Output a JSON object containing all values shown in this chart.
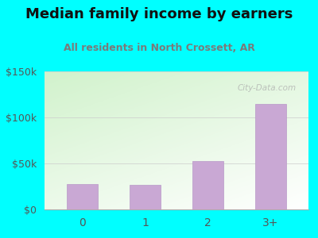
{
  "title": "Median family income by earners",
  "subtitle": "All residents in North Crossett, AR",
  "categories": [
    "0",
    "1",
    "2",
    "3+"
  ],
  "values": [
    28000,
    27000,
    53000,
    115000
  ],
  "bar_color": "#c9a8d4",
  "bar_edge_color": "#b898c8",
  "ylim": [
    0,
    150000
  ],
  "yticks": [
    0,
    50000,
    100000,
    150000
  ],
  "ytick_labels": [
    "$0",
    "$50k",
    "$100k",
    "$150k"
  ],
  "background_color": "#00ffff",
  "plot_bg_topleft": "#d4edcc",
  "plot_bg_bottomright": "#ffffff",
  "title_color": "#111111",
  "subtitle_color": "#7a7a7a",
  "tick_color": "#555555",
  "watermark": "City-Data.com",
  "title_fontsize": 13,
  "subtitle_fontsize": 9
}
